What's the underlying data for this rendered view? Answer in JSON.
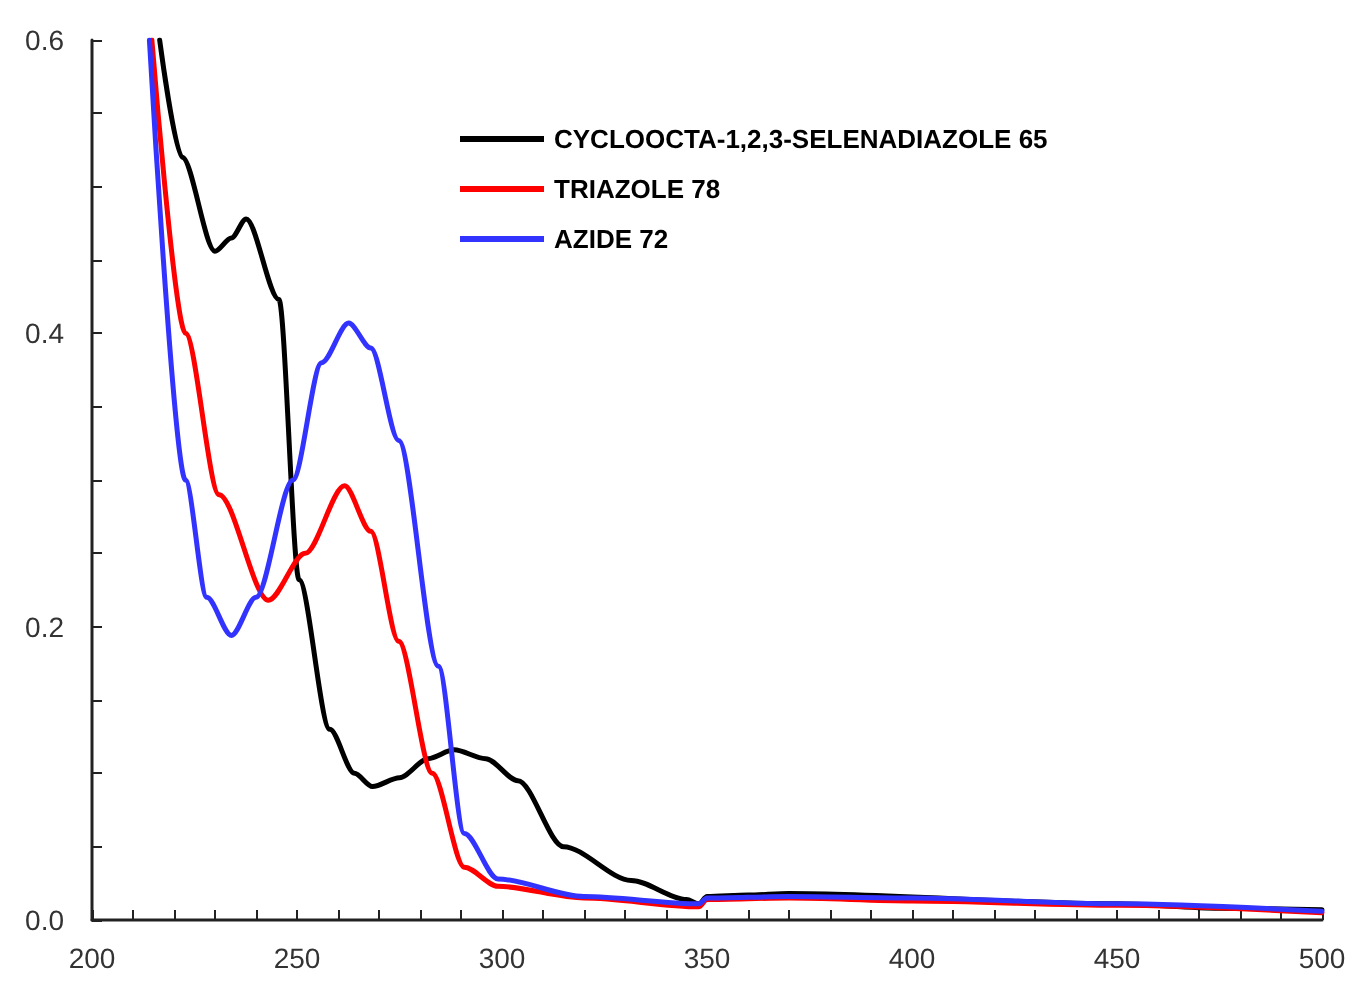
{
  "chart_data": {
    "type": "line",
    "legend": "top right",
    "grid": false,
    "marker": "none",
    "line_style": "solid",
    "xlim": [
      200,
      500
    ],
    "ylim": [
      0,
      0.6
    ],
    "xticks": [
      200,
      {
        "value": 210,
        "label": null
      },
      {
        "value": 220,
        "label": null
      },
      {
        "value": 230,
        "label": null
      },
      {
        "value": 240,
        "label": null
      },
      250,
      {
        "value": 260,
        "label": null
      },
      {
        "value": 270,
        "label": null
      },
      {
        "value": 280,
        "label": null
      },
      {
        "value": 290,
        "label": null
      },
      300,
      {
        "value": 310,
        "label": null
      },
      {
        "value": 320,
        "label": null
      },
      {
        "value": 330,
        "label": null
      },
      {
        "value": 340,
        "label": null
      },
      350,
      {
        "value": 360,
        "label": null
      },
      {
        "value": 370,
        "label": null
      },
      {
        "value": 380,
        "label": null
      },
      {
        "value": 390,
        "label": null
      },
      400,
      {
        "value": 410,
        "label": null
      },
      {
        "value": 420,
        "label": null
      },
      {
        "value": 430,
        "label": null
      },
      {
        "value": 440,
        "label": null
      },
      450,
      {
        "value": 460,
        "label": null
      },
      {
        "value": 470,
        "label": null
      },
      {
        "value": 480,
        "label": null
      },
      {
        "value": 490,
        "label": null
      },
      500
    ],
    "yticks": [
      {
        "value": 0,
        "label": "0.0"
      },
      {
        "value": 0.05,
        "label": null
      },
      {
        "value": 0.1,
        "label": null
      },
      {
        "value": 0.15,
        "label": null
      },
      0.2,
      {
        "value": 0.25,
        "label": null
      },
      {
        "value": 0.3,
        "label": null
      },
      {
        "value": 0.35,
        "label": null
      },
      0.4,
      {
        "value": 0.45,
        "label": null
      },
      {
        "value": 0.5,
        "label": null
      },
      {
        "value": 0.55,
        "label": null
      },
      0.6
    ],
    "series": [
      {
        "name": "CYCLOOCTA-1,2,3-SELENADIAZOLE 65",
        "color": "#000000",
        "x": [
          216.5,
          222,
          230,
          234,
          237.6,
          245.6,
          250.5,
          258,
          264,
          268.4,
          275,
          282,
          288.3,
          296,
          303.9,
          315,
          331.5,
          345,
          348,
          350,
          360,
          370,
          450,
          475,
          500
        ],
        "values": [
          0.6,
          0.52,
          0.456,
          0.465,
          0.478,
          0.423,
          0.232,
          0.13,
          0.1,
          0.091,
          0.097,
          0.11,
          0.116,
          0.11,
          0.095,
          0.05,
          0.027,
          0.014,
          0.011,
          0.016,
          0.017,
          0.018,
          0.011,
          0.008,
          0.007
        ]
      },
      {
        "name": "TRIAZOLE 78",
        "color": "#ff0000",
        "x": [
          214.6,
          222.8,
          231,
          243,
          252,
          261.6,
          268,
          274.8,
          283,
          290.8,
          299,
          320,
          348,
          350,
          370,
          400,
          450,
          500
        ],
        "values": [
          0.6,
          0.4,
          0.29,
          0.218,
          0.25,
          0.296,
          0.265,
          0.19,
          0.1,
          0.036,
          0.023,
          0.015,
          0.009,
          0.014,
          0.015,
          0.013,
          0.01,
          0.005
        ]
      },
      {
        "name": "AZIDE 72",
        "color": "#3333ff",
        "x": [
          214,
          222.8,
          228,
          234,
          240,
          249,
          256,
          262.6,
          268,
          274.8,
          284.5,
          290.8,
          299,
          320,
          348,
          350,
          370,
          400,
          450,
          500
        ],
        "values": [
          0.6,
          0.3,
          0.22,
          0.194,
          0.22,
          0.3,
          0.38,
          0.407,
          0.39,
          0.327,
          0.173,
          0.059,
          0.028,
          0.016,
          0.011,
          0.015,
          0.016,
          0.015,
          0.011,
          0.006
        ]
      }
    ]
  }
}
